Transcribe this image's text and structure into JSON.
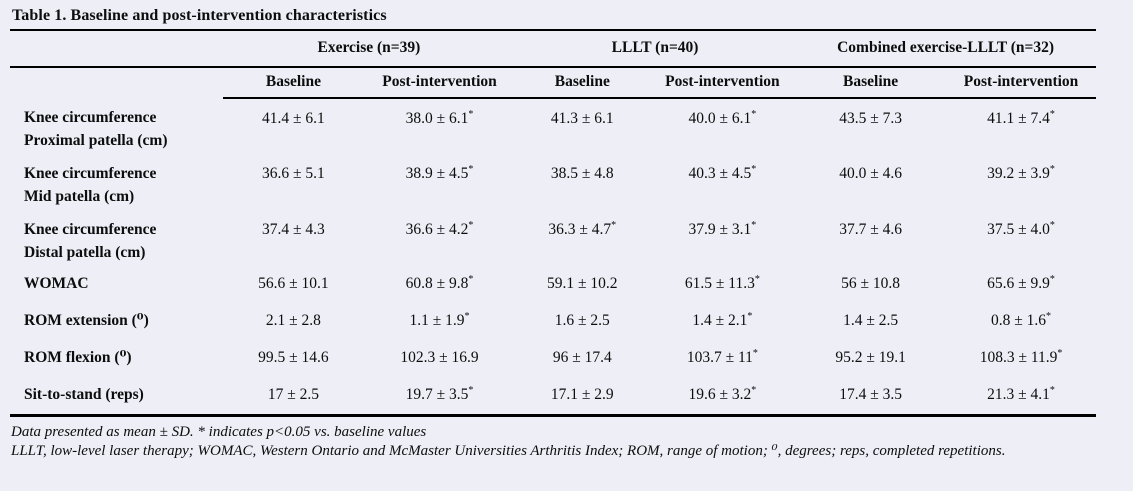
{
  "title": "Table 1. Baseline and post-intervention characteristics",
  "table": {
    "groups": [
      {
        "label": "Exercise (n=39)"
      },
      {
        "label": "LLLT (n=40)"
      },
      {
        "label": "Combined exercise-LLLT (n=32)"
      }
    ],
    "subheaders": [
      "Baseline",
      "Post-intervention",
      "Baseline",
      "Post-intervention",
      "Baseline",
      "Post-intervention"
    ],
    "rows": [
      {
        "label_lines": [
          "Knee circumference",
          "Proximal patella (cm)"
        ],
        "values": [
          "41.4 ± 6.1",
          "38.0 ± 6.1*",
          "41.3 ± 6.1",
          "40.0 ± 6.1*",
          "43.5 ± 7.3",
          "41.1 ± 7.4*"
        ]
      },
      {
        "label_lines": [
          "Knee circumference",
          "Mid patella (cm)"
        ],
        "values": [
          "36.6 ± 5.1",
          "38.9 ± 4.5*",
          "38.5 ± 4.8",
          "40.3 ± 4.5*",
          "40.0 ± 4.6",
          "39.2 ± 3.9*"
        ]
      },
      {
        "label_lines": [
          "Knee circumference",
          "Distal patella (cm)"
        ],
        "values": [
          "37.4 ± 4.3",
          "36.6 ± 4.2*",
          "36.3 ± 4.7*",
          "37.9 ± 3.1*",
          "37.7 ± 4.6",
          "37.5 ± 4.0*"
        ]
      },
      {
        "label_lines": [
          "WOMAC"
        ],
        "values": [
          "56.6 ± 10.1",
          "60.8 ± 9.8*",
          "59.1 ± 10.2",
          "61.5 ± 11.3*",
          "56 ± 10.8",
          "65.6 ± 9.9*"
        ]
      },
      {
        "label_lines": [
          "ROM extension (⁰)"
        ],
        "values": [
          "2.1 ± 2.8",
          "1.1 ± 1.9*",
          "1.6 ± 2.5",
          "1.4 ± 2.1*",
          "1.4 ± 2.5",
          "0.8 ± 1.6*"
        ]
      },
      {
        "label_lines": [
          "ROM flexion (⁰)"
        ],
        "values": [
          "99.5 ± 14.6",
          "102.3 ± 16.9",
          "96 ± 17.4",
          "103.7 ± 11*",
          "95.2 ± 19.1",
          "108.3 ± 11.9*"
        ]
      },
      {
        "label_lines": [
          "Sit-to-stand (reps)"
        ],
        "values": [
          "17 ± 2.5",
          "19.7 ± 3.5*",
          "17.1 ± 2.9",
          "19.6 ± 3.2*",
          "17.4 ± 3.5",
          "21.3 ± 4.1*"
        ]
      }
    ]
  },
  "footnotes": [
    "Data presented as mean ± SD. * indicates p<0.05 vs. baseline values",
    "LLLT, low-level laser therapy; WOMAC, Western Ontario and McMaster Universities Arthritis Index; ROM, range of motion; ⁰, degrees; reps, completed repetitions."
  ],
  "colors": {
    "background": "#edeef6",
    "text": "#0d0d0d",
    "rule": "#000000"
  }
}
